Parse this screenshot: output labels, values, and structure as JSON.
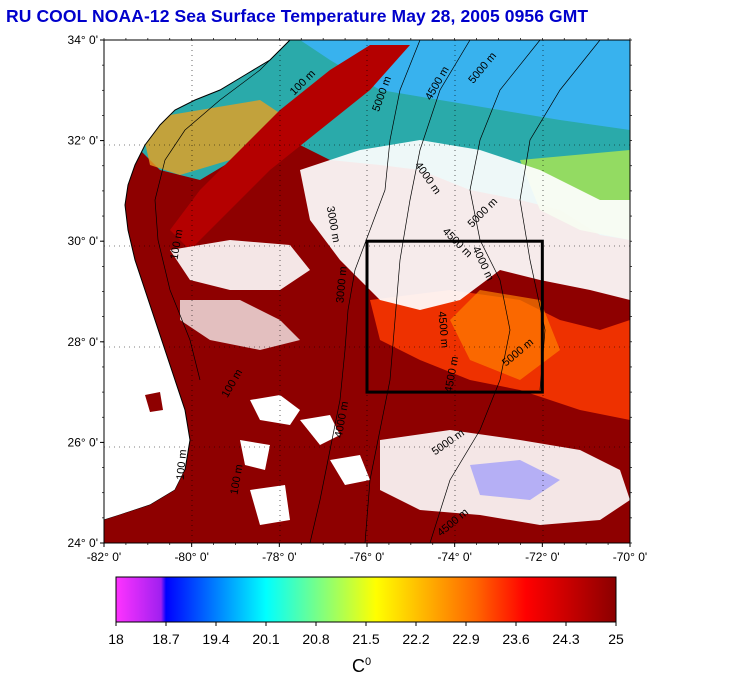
{
  "title": "RU COOL  NOAA-12 Sea Surface Temperature May 28, 2005 0956 GMT",
  "map": {
    "lat_labels": [
      "34° 0'",
      "32° 0'",
      "30° 0'",
      "28° 0'",
      "26° 0'",
      "24° 0'"
    ],
    "lon_labels": [
      "-82° 0'",
      "-80° 0'",
      "-78° 0'",
      "-76° 0'",
      "-74° 0'",
      "-72° 0'",
      "-70° 0'"
    ],
    "lat_range": [
      24,
      34
    ],
    "lon_range": [
      -82,
      -70
    ],
    "contour_labels": [
      "100 m",
      "5000 m",
      "4500 m",
      "5000 m",
      "4000 m",
      "5000 m",
      "3000 m",
      "4500 m",
      "4000 m",
      "100 m",
      "3000 m",
      "4500 m",
      "5000 m",
      "4500 m",
      "4000 m",
      "100 m",
      "100 m",
      "100 m",
      "5000 m",
      "4500 m"
    ],
    "box": {
      "lon": [
        -76,
        -72
      ],
      "lat": [
        27,
        30
      ]
    }
  },
  "colorbar": {
    "ticks": [
      "18",
      "18.7",
      "19.4",
      "20.1",
      "20.8",
      "21.5",
      "22.2",
      "22.9",
      "23.6",
      "24.3",
      "25"
    ],
    "unit": "C",
    "unit_sup": "0",
    "colors": [
      "#ff33ff",
      "#0000ff",
      "#00ffff",
      "#ffff00",
      "#ff0000",
      "#8b0000"
    ]
  }
}
